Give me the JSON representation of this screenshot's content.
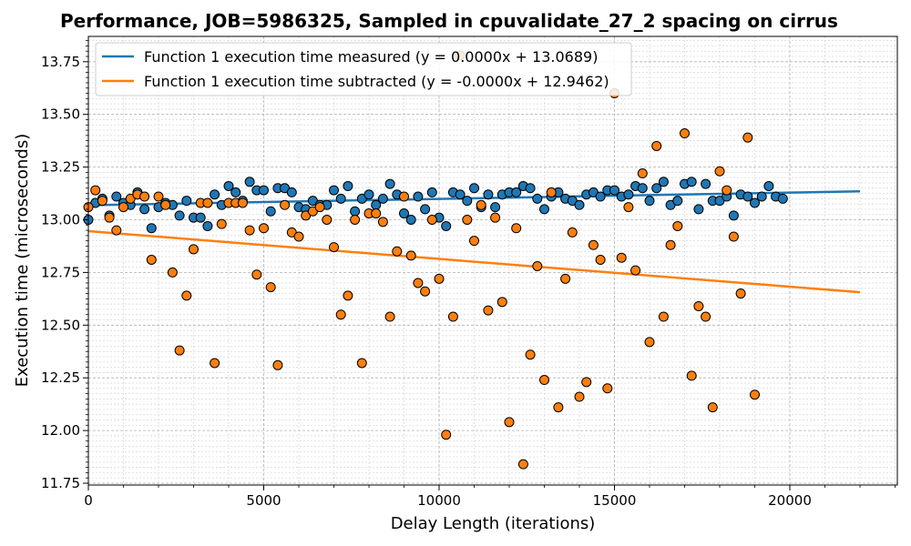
{
  "chart_data": {
    "type": "scatter",
    "title": "Performance, JOB=5986325, Sampled in cpuvalidate_27_2 spacing on cirrus",
    "xlabel": "Delay Length (iterations)",
    "ylabel": "Execution time (microseconds)",
    "xlim": [
      0,
      23000
    ],
    "ylim": [
      11.75,
      13.875
    ],
    "x_ticks": [
      0,
      5000,
      10000,
      15000,
      20000
    ],
    "y_ticks": [
      11.75,
      12.0,
      12.25,
      12.5,
      12.75,
      13.0,
      13.25,
      13.5,
      13.75
    ],
    "x_tick_labels": [
      "0",
      "5000",
      "10000",
      "15000",
      "20000"
    ],
    "y_tick_labels": [
      "11.75",
      "12.00",
      "12.25",
      "12.50",
      "12.75",
      "13.00",
      "13.25",
      "13.50",
      "13.75"
    ],
    "grid": true,
    "legend_position": "top-left",
    "series": [
      {
        "name": "Function 1 execution time measured (y = 0.0000x + 13.0689)",
        "color": "#1f77b4",
        "fit_line": {
          "x": [
            0,
            22000
          ],
          "y": [
            13.069,
            13.135
          ]
        },
        "points": [
          [
            0,
            13.0
          ],
          [
            200,
            13.08
          ],
          [
            400,
            13.1
          ],
          [
            600,
            13.02
          ],
          [
            800,
            13.11
          ],
          [
            1000,
            13.08
          ],
          [
            1200,
            13.07
          ],
          [
            1400,
            13.13
          ],
          [
            1600,
            13.05
          ],
          [
            1800,
            12.96
          ],
          [
            2000,
            13.06
          ],
          [
            2200,
            13.08
          ],
          [
            2400,
            13.07
          ],
          [
            2600,
            13.02
          ],
          [
            2800,
            13.09
          ],
          [
            3000,
            13.01
          ],
          [
            3200,
            13.01
          ],
          [
            3400,
            12.97
          ],
          [
            3600,
            13.12
          ],
          [
            3800,
            13.07
          ],
          [
            4000,
            13.16
          ],
          [
            4200,
            13.13
          ],
          [
            4400,
            13.09
          ],
          [
            4600,
            13.18
          ],
          [
            4800,
            13.14
          ],
          [
            5000,
            13.14
          ],
          [
            5200,
            13.04
          ],
          [
            5400,
            13.15
          ],
          [
            5600,
            13.15
          ],
          [
            5800,
            13.13
          ],
          [
            6000,
            13.06
          ],
          [
            6200,
            13.05
          ],
          [
            6400,
            13.09
          ],
          [
            6600,
            13.07
          ],
          [
            6800,
            13.07
          ],
          [
            7000,
            13.14
          ],
          [
            7200,
            13.1
          ],
          [
            7400,
            13.16
          ],
          [
            7600,
            13.04
          ],
          [
            7800,
            13.1
          ],
          [
            8000,
            13.12
          ],
          [
            8200,
            13.07
          ],
          [
            8400,
            13.1
          ],
          [
            8600,
            13.17
          ],
          [
            8800,
            13.12
          ],
          [
            9000,
            13.03
          ],
          [
            9200,
            13.0
          ],
          [
            9400,
            13.11
          ],
          [
            9600,
            13.05
          ],
          [
            9800,
            13.13
          ],
          [
            10000,
            13.01
          ],
          [
            10200,
            12.97
          ],
          [
            10400,
            13.13
          ],
          [
            10600,
            13.12
          ],
          [
            10800,
            13.09
          ],
          [
            11000,
            13.15
          ],
          [
            11200,
            13.06
          ],
          [
            11400,
            13.12
          ],
          [
            11600,
            13.06
          ],
          [
            11800,
            13.12
          ],
          [
            12000,
            13.13
          ],
          [
            12200,
            13.13
          ],
          [
            12400,
            13.16
          ],
          [
            12600,
            13.15
          ],
          [
            12800,
            13.1
          ],
          [
            13000,
            13.05
          ],
          [
            13200,
            13.11
          ],
          [
            13400,
            13.13
          ],
          [
            13600,
            13.1
          ],
          [
            13800,
            13.09
          ],
          [
            14000,
            13.07
          ],
          [
            14200,
            13.12
          ],
          [
            14400,
            13.13
          ],
          [
            14600,
            13.11
          ],
          [
            14800,
            13.14
          ],
          [
            15000,
            13.14
          ],
          [
            15200,
            13.11
          ],
          [
            15400,
            13.12
          ],
          [
            15600,
            13.16
          ],
          [
            15800,
            13.15
          ],
          [
            16000,
            13.09
          ],
          [
            16200,
            13.15
          ],
          [
            16400,
            13.18
          ],
          [
            16600,
            13.07
          ],
          [
            16800,
            13.09
          ],
          [
            17000,
            13.17
          ],
          [
            17200,
            13.18
          ],
          [
            17400,
            13.05
          ],
          [
            17600,
            13.17
          ],
          [
            17800,
            13.09
          ],
          [
            18000,
            13.09
          ],
          [
            18200,
            13.11
          ],
          [
            18400,
            13.02
          ],
          [
            18600,
            13.12
          ],
          [
            18800,
            13.11
          ],
          [
            19000,
            13.08
          ],
          [
            19200,
            13.11
          ],
          [
            19400,
            13.16
          ],
          [
            19600,
            13.11
          ],
          [
            19800,
            13.1
          ]
        ]
      },
      {
        "name": "Function 1 execution time subtracted (y = -0.0000x + 12.9462)",
        "color": "#ff7f0e",
        "fit_line": {
          "x": [
            0,
            22000
          ],
          "y": [
            12.946,
            12.656
          ]
        },
        "points": [
          [
            0,
            13.06
          ],
          [
            200,
            13.14
          ],
          [
            400,
            13.09
          ],
          [
            600,
            13.01
          ],
          [
            800,
            12.95
          ],
          [
            1000,
            13.06
          ],
          [
            1200,
            13.1
          ],
          [
            1400,
            13.12
          ],
          [
            1600,
            13.11
          ],
          [
            1800,
            12.81
          ],
          [
            2000,
            13.11
          ],
          [
            2200,
            13.07
          ],
          [
            2400,
            12.75
          ],
          [
            2600,
            12.38
          ],
          [
            2800,
            12.64
          ],
          [
            3000,
            12.86
          ],
          [
            3200,
            13.08
          ],
          [
            3400,
            13.08
          ],
          [
            3600,
            12.32
          ],
          [
            3800,
            12.98
          ],
          [
            4000,
            13.08
          ],
          [
            4200,
            13.08
          ],
          [
            4400,
            13.08
          ],
          [
            4600,
            12.95
          ],
          [
            4800,
            12.74
          ],
          [
            5000,
            12.96
          ],
          [
            5200,
            12.68
          ],
          [
            5400,
            12.31
          ],
          [
            5600,
            13.07
          ],
          [
            5800,
            12.94
          ],
          [
            6000,
            12.92
          ],
          [
            6200,
            13.02
          ],
          [
            6400,
            13.04
          ],
          [
            6600,
            13.06
          ],
          [
            6800,
            13.0
          ],
          [
            7000,
            12.87
          ],
          [
            7200,
            12.55
          ],
          [
            7400,
            12.64
          ],
          [
            7600,
            13.0
          ],
          [
            7800,
            12.32
          ],
          [
            8000,
            13.03
          ],
          [
            8200,
            13.03
          ],
          [
            8400,
            12.99
          ],
          [
            8600,
            12.54
          ],
          [
            8800,
            12.85
          ],
          [
            9000,
            13.11
          ],
          [
            9200,
            12.83
          ],
          [
            9400,
            12.7
          ],
          [
            9600,
            12.66
          ],
          [
            9800,
            13.0
          ],
          [
            10000,
            12.72
          ],
          [
            10200,
            11.98
          ],
          [
            10400,
            12.54
          ],
          [
            10600,
            13.78
          ],
          [
            10800,
            13.0
          ],
          [
            11000,
            12.9
          ],
          [
            11200,
            13.07
          ],
          [
            11400,
            12.57
          ],
          [
            11600,
            13.01
          ],
          [
            11800,
            12.61
          ],
          [
            12000,
            12.04
          ],
          [
            12200,
            12.96
          ],
          [
            12400,
            11.84
          ],
          [
            12600,
            12.36
          ],
          [
            12800,
            12.78
          ],
          [
            13000,
            12.24
          ],
          [
            13200,
            13.13
          ],
          [
            13400,
            12.11
          ],
          [
            13600,
            12.72
          ],
          [
            13800,
            12.94
          ],
          [
            14000,
            12.16
          ],
          [
            14200,
            12.23
          ],
          [
            14400,
            12.88
          ],
          [
            14600,
            12.81
          ],
          [
            14800,
            12.2
          ],
          [
            15000,
            13.6
          ],
          [
            15200,
            12.82
          ],
          [
            15400,
            13.06
          ],
          [
            15600,
            12.76
          ],
          [
            15800,
            13.22
          ],
          [
            16000,
            12.42
          ],
          [
            16200,
            13.35
          ],
          [
            16400,
            12.54
          ],
          [
            16600,
            12.88
          ],
          [
            16800,
            12.97
          ],
          [
            17000,
            13.41
          ],
          [
            17200,
            12.26
          ],
          [
            17400,
            12.59
          ],
          [
            17600,
            12.54
          ],
          [
            17800,
            12.11
          ],
          [
            18000,
            13.23
          ],
          [
            18200,
            13.14
          ],
          [
            18400,
            12.92
          ],
          [
            18600,
            12.65
          ],
          [
            18800,
            13.39
          ],
          [
            19000,
            12.17
          ]
        ]
      }
    ]
  }
}
